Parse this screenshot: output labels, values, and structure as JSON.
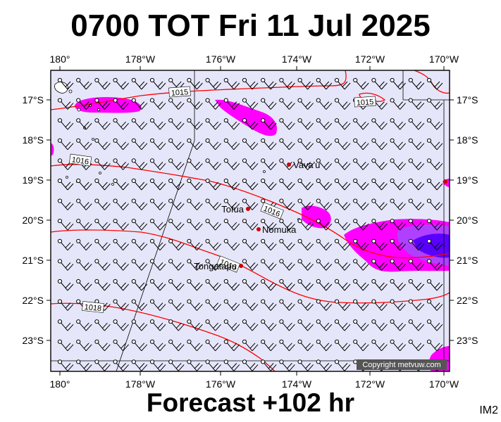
{
  "header": {
    "title": "0700 TOT Fri 11 Jul 2025"
  },
  "footer": {
    "forecast": "Forecast +102 hr",
    "code": "IM2"
  },
  "map": {
    "lon_ticks": [
      "180°",
      "178°W",
      "176°W",
      "174°W",
      "172°W",
      "170°W"
    ],
    "lat_ticks": [
      "17°S",
      "18°S",
      "19°S",
      "20°S",
      "21°S",
      "22°S",
      "23°S"
    ],
    "places": [
      {
        "name": "Vava'u"
      },
      {
        "name": "Tofua"
      },
      {
        "name": "Nomuka"
      },
      {
        "name": "Tongatapu"
      }
    ],
    "isobars": [
      "1015",
      "1015",
      "1016",
      "1016",
      "1016",
      "1018"
    ],
    "copyright": "Copyright metvuw.com",
    "colors": {
      "sea": "#e6e6fa",
      "isobar": "#ff0000",
      "rain_light": "#ff00ff",
      "rain_heavy": "#5a00ff",
      "place_marker": "#cc0000"
    }
  }
}
